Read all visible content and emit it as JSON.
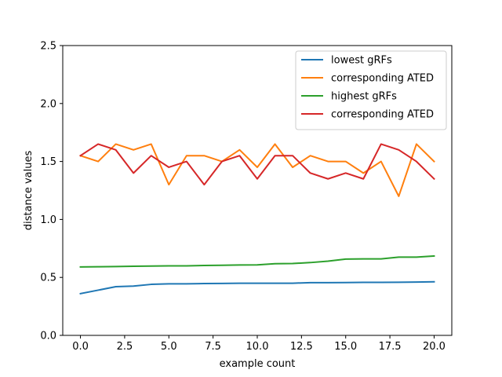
{
  "chart_data": {
    "type": "line",
    "xlabel": "example count",
    "ylabel": "distance values",
    "xlim": [
      -1,
      21
    ],
    "ylim": [
      0.0,
      2.5
    ],
    "xticks": [
      0.0,
      2.5,
      5.0,
      7.5,
      10.0,
      12.5,
      15.0,
      17.5,
      20.0
    ],
    "xtick_labels": [
      "0.0",
      "2.5",
      "5.0",
      "7.5",
      "10.0",
      "12.5",
      "15.0",
      "17.5",
      "20.0"
    ],
    "yticks": [
      0.0,
      0.5,
      1.0,
      1.5,
      2.0,
      2.5
    ],
    "ytick_labels": [
      "0.0",
      "0.5",
      "1.0",
      "1.5",
      "2.0",
      "2.5"
    ],
    "grid": false,
    "legend_position": "top-right",
    "x": [
      0,
      1,
      2,
      3,
      4,
      5,
      6,
      7,
      8,
      9,
      10,
      11,
      12,
      13,
      14,
      15,
      16,
      17,
      18,
      19,
      20
    ],
    "series": [
      {
        "name": "lowest gRFs",
        "color": "#1f77b4",
        "values": [
          0.36,
          0.39,
          0.42,
          0.425,
          0.44,
          0.445,
          0.445,
          0.447,
          0.448,
          0.45,
          0.45,
          0.45,
          0.45,
          0.455,
          0.455,
          0.456,
          0.457,
          0.457,
          0.458,
          0.46,
          0.462
        ]
      },
      {
        "name": "corresponding ATED",
        "color": "#ff7f0e",
        "values": [
          1.55,
          1.5,
          1.65,
          1.6,
          1.65,
          1.3,
          1.55,
          1.55,
          1.5,
          1.6,
          1.45,
          1.65,
          1.45,
          1.55,
          1.5,
          1.5,
          1.4,
          1.5,
          1.2,
          1.65,
          1.5
        ]
      },
      {
        "name": "highest gRFs",
        "color": "#2ca02c",
        "values": [
          0.59,
          0.592,
          0.594,
          0.596,
          0.598,
          0.6,
          0.6,
          0.603,
          0.605,
          0.607,
          0.608,
          0.618,
          0.62,
          0.628,
          0.64,
          0.658,
          0.66,
          0.66,
          0.675,
          0.675,
          0.685
        ]
      },
      {
        "name": "corresponding ATED",
        "color": "#d62728",
        "values": [
          1.55,
          1.65,
          1.6,
          1.4,
          1.55,
          1.45,
          1.5,
          1.3,
          1.5,
          1.55,
          1.35,
          1.55,
          1.55,
          1.4,
          1.35,
          1.4,
          1.35,
          1.65,
          1.6,
          1.5,
          1.35
        ]
      }
    ]
  }
}
